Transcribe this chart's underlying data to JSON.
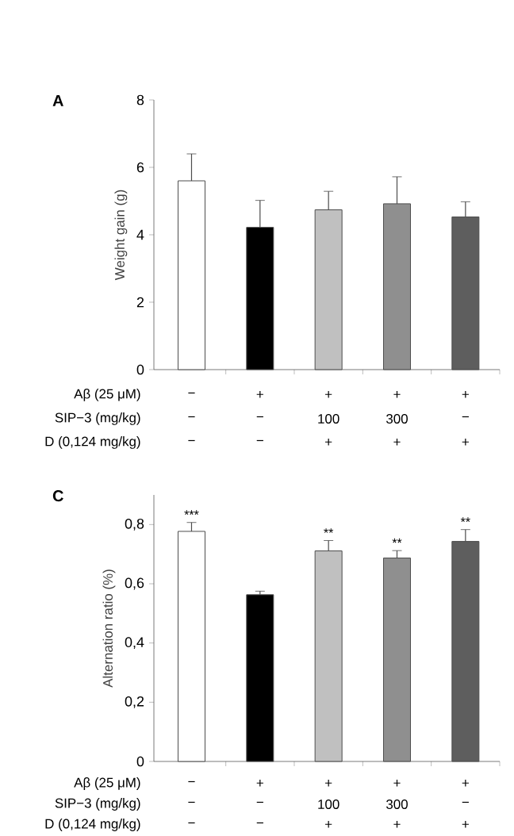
{
  "chart_data": [
    {
      "type": "bar",
      "title": "A",
      "ylabel": "Weight gain (g)",
      "categories": [
        null,
        null,
        null,
        null,
        null
      ],
      "values": [
        5.6,
        4.22,
        4.74,
        4.92,
        4.53
      ],
      "errors": [
        0.8,
        0.8,
        0.55,
        0.8,
        0.45
      ],
      "colors": [
        "#ffffff",
        "#000000",
        "#c0c0c0",
        "#8f8f8f",
        "#5e5e5e"
      ],
      "ylim": [
        0,
        8
      ],
      "yticks": [
        0,
        2,
        4,
        6,
        8
      ],
      "annotations": [
        "Aβ (25 μM)",
        "−",
        "+",
        "+",
        "+",
        "+",
        "SIP−3 (mg/kg)",
        "−",
        "−",
        "100",
        "300",
        "−",
        "D (0,124 mg/kg)",
        "−",
        "−",
        "+",
        "+",
        "+"
      ]
    },
    {
      "type": "bar",
      "title": "C",
      "ylabel": "Alternation ratio (%)",
      "categories": [
        null,
        null,
        null,
        null,
        null
      ],
      "values": [
        0.777,
        0.563,
        0.711,
        0.687,
        0.743
      ],
      "errors": [
        0.03,
        0.012,
        0.035,
        0.025,
        0.04
      ],
      "value_labels": [
        "***",
        null,
        "**",
        "**",
        "**"
      ],
      "colors": [
        "#ffffff",
        "#000000",
        "#c0c0c0",
        "#8f8f8f",
        "#5e5e5e"
      ],
      "ylim": [
        0,
        0.9
      ],
      "yticks": [
        0,
        {
          "value": 0.2,
          "label": "0,2"
        },
        {
          "value": 0.4,
          "label": "0,4"
        },
        {
          "value": 0.6,
          "label": "0,6"
        },
        {
          "value": 0.8,
          "label": "0,8"
        }
      ],
      "annotations": [
        "Aβ (25 μM)",
        "−",
        "+",
        "+",
        "+",
        "+",
        "SIP−3 (mg/kg)",
        "−",
        "−",
        "100",
        "300",
        "−",
        "D (0,124 mg/kg)",
        "−",
        "−",
        "+",
        "+",
        "+"
      ]
    }
  ]
}
